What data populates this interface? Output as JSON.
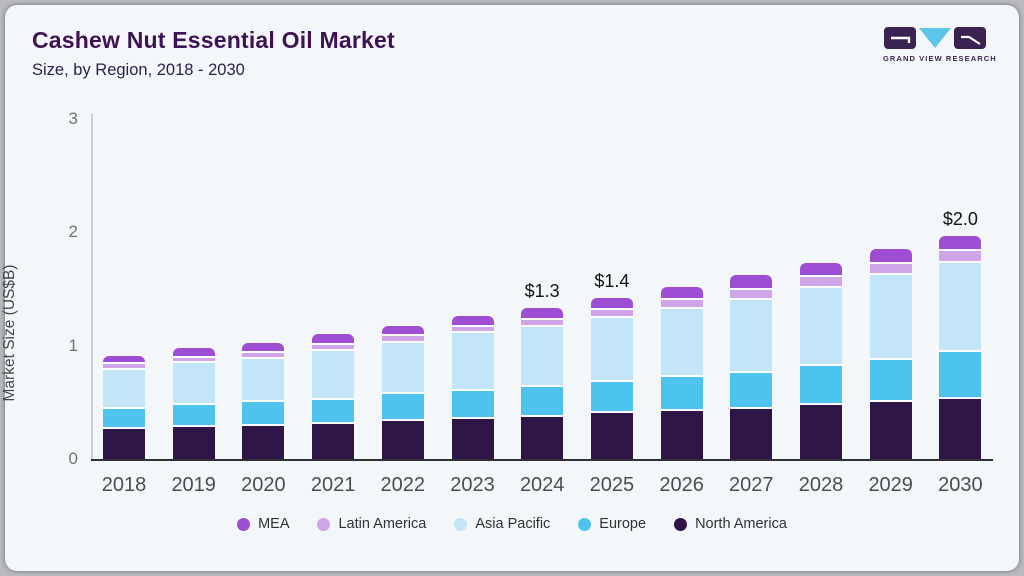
{
  "header": {
    "title": "Cashew Nut Essential Oil Market",
    "subtitle": "Size, by Region, 2018 - 2030"
  },
  "logo": {
    "text": "GRAND VIEW RESEARCH"
  },
  "colors": {
    "card_background": "#f4f7fa",
    "title": "#3e1254",
    "subtitle": "#2b2150",
    "yaxis_line": "#c9ced3",
    "xaxis_line": "#2f3035",
    "logo_purple": "#3a2352",
    "logo_blue": "#5cc5ea"
  },
  "chart_data": {
    "type": "bar",
    "stacked": true,
    "title": "Cashew Nut Essential Oil Market",
    "subtitle": "Size, by Region, 2018 - 2030",
    "xlabel": "",
    "ylabel": "Market Size (US$B)",
    "ylim": [
      0,
      3
    ],
    "yticks": [
      "0",
      "1",
      "2",
      "3"
    ],
    "grid": false,
    "legend_position": "bottom",
    "categories": [
      "2018",
      "2019",
      "2020",
      "2021",
      "2022",
      "2023",
      "2024",
      "2025",
      "2026",
      "2027",
      "2028",
      "2029",
      "2030"
    ],
    "series": [
      {
        "name": "North America",
        "color": "#2e1547",
        "values": [
          0.28,
          0.3,
          0.31,
          0.33,
          0.35,
          0.37,
          0.39,
          0.42,
          0.44,
          0.46,
          0.49,
          0.52,
          0.55
        ]
      },
      {
        "name": "Europe",
        "color": "#4ec3ee",
        "values": [
          0.18,
          0.19,
          0.21,
          0.21,
          0.24,
          0.25,
          0.26,
          0.28,
          0.3,
          0.32,
          0.35,
          0.37,
          0.41
        ]
      },
      {
        "name": "Asia Pacific",
        "color": "#c2e6f8",
        "values": [
          0.34,
          0.37,
          0.38,
          0.43,
          0.45,
          0.51,
          0.53,
          0.56,
          0.6,
          0.64,
          0.69,
          0.75,
          0.79
        ]
      },
      {
        "name": "Latin America",
        "color": "#d0a5e8",
        "values": [
          0.06,
          0.05,
          0.05,
          0.05,
          0.06,
          0.05,
          0.06,
          0.07,
          0.08,
          0.09,
          0.09,
          0.1,
          0.1
        ]
      },
      {
        "name": "MEA",
        "color": "#9d4ed3",
        "values": [
          0.05,
          0.07,
          0.07,
          0.08,
          0.07,
          0.08,
          0.09,
          0.09,
          0.1,
          0.11,
          0.11,
          0.11,
          0.12
        ]
      }
    ],
    "annotations": [
      {
        "category": "2024",
        "label": "$1.3"
      },
      {
        "category": "2025",
        "label": "$1.4"
      },
      {
        "category": "2030",
        "label": "$2.0"
      }
    ]
  }
}
